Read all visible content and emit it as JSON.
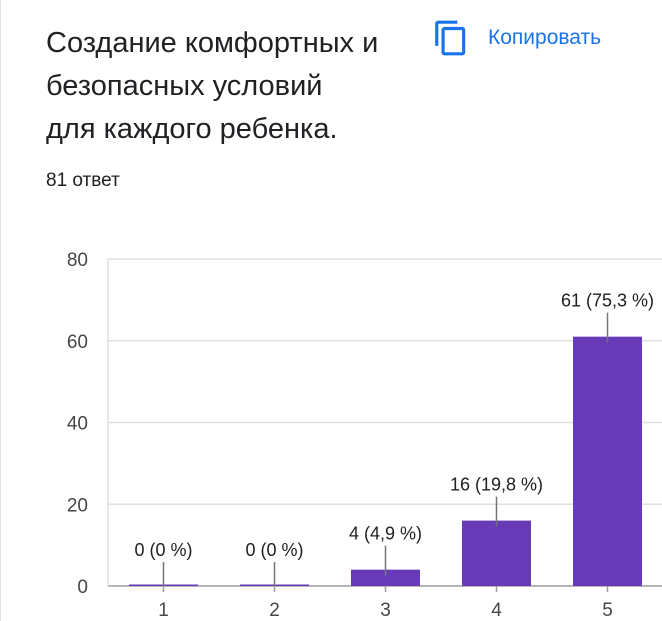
{
  "question": {
    "title_lines": [
      "Создание комфортных и",
      "безопасных условий",
      "для каждого ребенка."
    ],
    "responses": "81 ответ"
  },
  "toolbar": {
    "copy_label": "Копировать",
    "copy_icon": "copy-icon"
  },
  "colors": {
    "bar": "#673ab7",
    "accent": "#1a73e8",
    "grid": "#e0e0e0",
    "text": "#202124",
    "axis_text": "#444746"
  },
  "chart_data": {
    "type": "bar",
    "categories": [
      "1",
      "2",
      "3",
      "4",
      "5"
    ],
    "values": [
      0,
      0,
      4,
      16,
      61
    ],
    "data_labels": [
      "0 (0 %)",
      "0 (0 %)",
      "4 (4,9 %)",
      "16 (19,8 %)",
      "61 (75,3 %)"
    ],
    "yticks": [
      "0",
      "20",
      "40",
      "60",
      "80"
    ],
    "ylim": [
      0,
      80
    ],
    "grid": true,
    "xlabel": "",
    "ylabel": ""
  }
}
